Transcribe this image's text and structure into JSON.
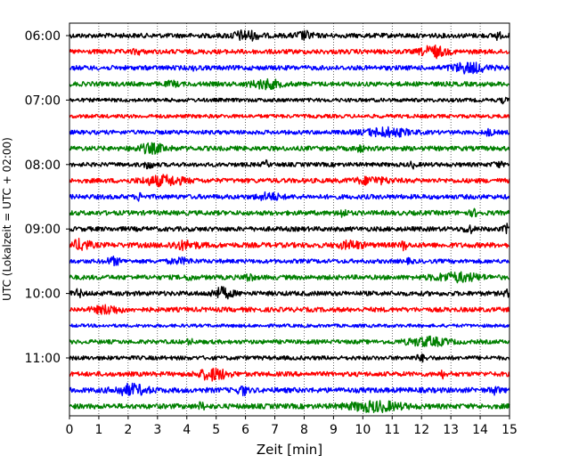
{
  "chart_data": {
    "type": "line",
    "subtype": "helicorder-seismogram",
    "xlabel": "Zeit  [min]",
    "ylabel": "UTC (Lokalzeit = UTC + 02:00)",
    "xlim": [
      0,
      15
    ],
    "x_ticks": [
      0,
      1,
      2,
      3,
      4,
      5,
      6,
      7,
      8,
      9,
      10,
      11,
      12,
      13,
      14,
      15
    ],
    "x_tick_labels": [
      "0",
      "1",
      "2",
      "3",
      "4",
      "5",
      "6",
      "7",
      "8",
      "9",
      "10",
      "11",
      "12",
      "13",
      "14",
      "15"
    ],
    "y_tick_labels": [
      "06:00",
      "07:00",
      "08:00",
      "09:00",
      "10:00",
      "11:00"
    ],
    "trace_interval_minutes": 15,
    "grid": "vertical dotted at each minute",
    "legend": "none",
    "trace_colors": [
      "#000000",
      "#ff0000",
      "#0000ff",
      "#008000"
    ],
    "traces": [
      {
        "start_utc": "06:00",
        "color_index": 0,
        "amplitude": 1.0,
        "bursts": [
          {
            "t": 6.0,
            "w": 0.9,
            "a": 2.0
          },
          {
            "t": 8.0,
            "w": 0.6,
            "a": 1.6
          },
          {
            "t": 14.6,
            "w": 0.2,
            "a": 1.6
          }
        ]
      },
      {
        "start_utc": "06:15",
        "color_index": 1,
        "amplitude": 1.0,
        "bursts": [
          {
            "t": 12.4,
            "w": 0.8,
            "a": 2.4
          },
          {
            "t": 2.3,
            "w": 0.3,
            "a": 1.0
          }
        ]
      },
      {
        "start_utc": "06:30",
        "color_index": 2,
        "amplitude": 1.0,
        "bursts": [
          {
            "t": 13.6,
            "w": 1.2,
            "a": 2.0
          },
          {
            "t": 4.3,
            "w": 0.2,
            "a": 1.0
          }
        ]
      },
      {
        "start_utc": "06:45",
        "color_index": 3,
        "amplitude": 1.0,
        "bursts": [
          {
            "t": 6.7,
            "w": 1.0,
            "a": 1.8
          },
          {
            "t": 3.5,
            "w": 0.4,
            "a": 1.0
          }
        ]
      },
      {
        "start_utc": "07:00",
        "color_index": 0,
        "amplitude": 0.8,
        "bursts": [
          {
            "t": 14.8,
            "w": 0.2,
            "a": 1.4
          }
        ]
      },
      {
        "start_utc": "07:15",
        "color_index": 1,
        "amplitude": 0.8,
        "bursts": []
      },
      {
        "start_utc": "07:30",
        "color_index": 2,
        "amplitude": 0.9,
        "bursts": [
          {
            "t": 10.8,
            "w": 1.5,
            "a": 2.0
          },
          {
            "t": 14.3,
            "w": 0.3,
            "a": 1.4
          }
        ]
      },
      {
        "start_utc": "07:45",
        "color_index": 3,
        "amplitude": 1.0,
        "bursts": [
          {
            "t": 2.8,
            "w": 1.0,
            "a": 1.8
          },
          {
            "t": 9.9,
            "w": 0.3,
            "a": 1.2
          }
        ]
      },
      {
        "start_utc": "08:00",
        "color_index": 0,
        "amplitude": 0.9,
        "bursts": [
          {
            "t": 2.7,
            "w": 0.3,
            "a": 1.8
          },
          {
            "t": 6.7,
            "w": 0.2,
            "a": 1.5
          },
          {
            "t": 11.7,
            "w": 0.2,
            "a": 1.4
          },
          {
            "t": 14.6,
            "w": 0.3,
            "a": 1.3
          }
        ]
      },
      {
        "start_utc": "08:15",
        "color_index": 1,
        "amplitude": 1.0,
        "bursts": [
          {
            "t": 3.2,
            "w": 1.4,
            "a": 2.0
          },
          {
            "t": 10.3,
            "w": 1.2,
            "a": 1.4
          }
        ]
      },
      {
        "start_utc": "08:30",
        "color_index": 2,
        "amplitude": 1.0,
        "bursts": [
          {
            "t": 6.8,
            "w": 0.8,
            "a": 1.5
          },
          {
            "t": 2.4,
            "w": 0.2,
            "a": 1.6
          }
        ]
      },
      {
        "start_utc": "08:45",
        "color_index": 3,
        "amplitude": 1.0,
        "bursts": [
          {
            "t": 9.3,
            "w": 0.3,
            "a": 1.6
          },
          {
            "t": 13.8,
            "w": 0.3,
            "a": 1.2
          }
        ]
      },
      {
        "start_utc": "09:00",
        "color_index": 0,
        "amplitude": 1.0,
        "bursts": [
          {
            "t": 13.6,
            "w": 0.3,
            "a": 1.8
          },
          {
            "t": 14.9,
            "w": 0.2,
            "a": 1.8
          }
        ]
      },
      {
        "start_utc": "09:15",
        "color_index": 1,
        "amplitude": 1.1,
        "bursts": [
          {
            "t": 0.4,
            "w": 0.6,
            "a": 2.0
          },
          {
            "t": 3.9,
            "w": 1.0,
            "a": 1.4
          },
          {
            "t": 9.6,
            "w": 0.8,
            "a": 1.4
          },
          {
            "t": 11.4,
            "w": 0.2,
            "a": 1.8
          }
        ]
      },
      {
        "start_utc": "09:30",
        "color_index": 2,
        "amplitude": 0.9,
        "bursts": [
          {
            "t": 1.5,
            "w": 0.5,
            "a": 1.7
          },
          {
            "t": 3.8,
            "w": 0.8,
            "a": 1.2
          },
          {
            "t": 11.6,
            "w": 0.2,
            "a": 1.2
          }
        ]
      },
      {
        "start_utc": "09:45",
        "color_index": 3,
        "amplitude": 1.0,
        "bursts": [
          {
            "t": 13.2,
            "w": 1.6,
            "a": 1.8
          },
          {
            "t": 6.1,
            "w": 0.3,
            "a": 1.6
          },
          {
            "t": 4.1,
            "w": 0.2,
            "a": 1.4
          }
        ]
      },
      {
        "start_utc": "10:00",
        "color_index": 0,
        "amplitude": 1.0,
        "bursts": [
          {
            "t": 5.2,
            "w": 0.7,
            "a": 2.2
          },
          {
            "t": 0.3,
            "w": 0.3,
            "a": 1.4
          },
          {
            "t": 14.9,
            "w": 0.2,
            "a": 1.3
          }
        ]
      },
      {
        "start_utc": "10:15",
        "color_index": 1,
        "amplitude": 1.0,
        "bursts": [
          {
            "t": 1.3,
            "w": 0.9,
            "a": 1.7
          }
        ]
      },
      {
        "start_utc": "10:30",
        "color_index": 2,
        "amplitude": 0.7,
        "bursts": []
      },
      {
        "start_utc": "10:45",
        "color_index": 3,
        "amplitude": 0.9,
        "bursts": [
          {
            "t": 12.2,
            "w": 1.4,
            "a": 2.0
          },
          {
            "t": 4.1,
            "w": 0.2,
            "a": 1.3
          }
        ]
      },
      {
        "start_utc": "11:00",
        "color_index": 0,
        "amplitude": 0.9,
        "bursts": [
          {
            "t": 12.0,
            "w": 0.4,
            "a": 1.3
          }
        ]
      },
      {
        "start_utc": "11:15",
        "color_index": 1,
        "amplitude": 1.0,
        "bursts": [
          {
            "t": 4.9,
            "w": 1.0,
            "a": 2.4
          },
          {
            "t": 12.7,
            "w": 0.2,
            "a": 1.4
          }
        ]
      },
      {
        "start_utc": "11:30",
        "color_index": 2,
        "amplitude": 1.1,
        "bursts": [
          {
            "t": 2.1,
            "w": 1.1,
            "a": 2.0
          },
          {
            "t": 5.9,
            "w": 0.3,
            "a": 1.8
          },
          {
            "t": 14.5,
            "w": 0.3,
            "a": 1.3
          }
        ]
      },
      {
        "start_utc": "11:45",
        "color_index": 3,
        "amplitude": 1.1,
        "bursts": [
          {
            "t": 10.4,
            "w": 1.8,
            "a": 1.8
          },
          {
            "t": 4.5,
            "w": 0.2,
            "a": 1.5
          }
        ]
      }
    ]
  }
}
